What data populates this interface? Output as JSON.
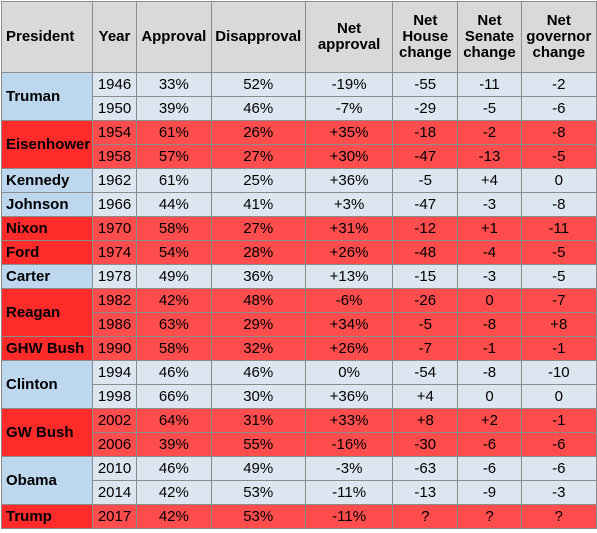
{
  "headers": {
    "president": "President",
    "year": "Year",
    "approval": "Approval",
    "disapproval": "Disapproval",
    "net_approval": [
      "Net",
      "approval"
    ],
    "net_house": [
      "Net",
      "House",
      "change"
    ],
    "net_senate": [
      "Net",
      "Senate",
      "change"
    ],
    "net_governor": [
      "Net",
      "governor",
      "change"
    ]
  },
  "colors": {
    "democrat_row": "#dce6f1",
    "democrat_name": "#bdd7ee",
    "republican_row": "#ff4d4d",
    "republican_name": "#ff2b2b",
    "header": "#d9d9d9"
  },
  "groups": [
    {
      "president": "Truman",
      "party": "D",
      "rows": [
        {
          "year": "1946",
          "approval": "33%",
          "disapproval": "52%",
          "net": "-19%",
          "house": "-55",
          "senate": "-11",
          "governor": "-2"
        },
        {
          "year": "1950",
          "approval": "39%",
          "disapproval": "46%",
          "net": "-7%",
          "house": "-29",
          "senate": "-5",
          "governor": "-6"
        }
      ]
    },
    {
      "president": "Eisenhower",
      "party": "R",
      "rows": [
        {
          "year": "1954",
          "approval": "61%",
          "disapproval": "26%",
          "net": "+35%",
          "house": "-18",
          "senate": "-2",
          "governor": "-8"
        },
        {
          "year": "1958",
          "approval": "57%",
          "disapproval": "27%",
          "net": "+30%",
          "house": "-47",
          "senate": "-13",
          "governor": "-5"
        }
      ]
    },
    {
      "president": "Kennedy",
      "party": "D",
      "rows": [
        {
          "year": "1962",
          "approval": "61%",
          "disapproval": "25%",
          "net": "+36%",
          "house": "-5",
          "senate": "+4",
          "governor": "0"
        }
      ]
    },
    {
      "president": "Johnson",
      "party": "D",
      "rows": [
        {
          "year": "1966",
          "approval": "44%",
          "disapproval": "41%",
          "net": "+3%",
          "house": "-47",
          "senate": "-3",
          "governor": "-8"
        }
      ]
    },
    {
      "president": "Nixon",
      "party": "R",
      "rows": [
        {
          "year": "1970",
          "approval": "58%",
          "disapproval": "27%",
          "net": "+31%",
          "house": "-12",
          "senate": "+1",
          "governor": "-11"
        }
      ]
    },
    {
      "president": "Ford",
      "party": "R",
      "rows": [
        {
          "year": "1974",
          "approval": "54%",
          "disapproval": "28%",
          "net": "+26%",
          "house": "-48",
          "senate": "-4",
          "governor": "-5"
        }
      ]
    },
    {
      "president": "Carter",
      "party": "D",
      "rows": [
        {
          "year": "1978",
          "approval": "49%",
          "disapproval": "36%",
          "net": "+13%",
          "house": "-15",
          "senate": "-3",
          "governor": "-5"
        }
      ]
    },
    {
      "president": "Reagan",
      "party": "R",
      "rows": [
        {
          "year": "1982",
          "approval": "42%",
          "disapproval": "48%",
          "net": "-6%",
          "house": "-26",
          "senate": "0",
          "governor": "-7"
        },
        {
          "year": "1986",
          "approval": "63%",
          "disapproval": "29%",
          "net": "+34%",
          "house": "-5",
          "senate": "-8",
          "governor": "+8"
        }
      ]
    },
    {
      "president": "GHW Bush",
      "party": "R",
      "rows": [
        {
          "year": "1990",
          "approval": "58%",
          "disapproval": "32%",
          "net": "+26%",
          "house": "-7",
          "senate": "-1",
          "governor": "-1"
        }
      ]
    },
    {
      "president": "Clinton",
      "party": "D",
      "rows": [
        {
          "year": "1994",
          "approval": "46%",
          "disapproval": "46%",
          "net": "0%",
          "house": "-54",
          "senate": "-8",
          "governor": "-10"
        },
        {
          "year": "1998",
          "approval": "66%",
          "disapproval": "30%",
          "net": "+36%",
          "house": "+4",
          "senate": "0",
          "governor": "0"
        }
      ]
    },
    {
      "president": "GW Bush",
      "party": "R",
      "rows": [
        {
          "year": "2002",
          "approval": "64%",
          "disapproval": "31%",
          "net": "+33%",
          "house": "+8",
          "senate": "+2",
          "governor": "-1"
        },
        {
          "year": "2006",
          "approval": "39%",
          "disapproval": "55%",
          "net": "-16%",
          "house": "-30",
          "senate": "-6",
          "governor": "-6"
        }
      ]
    },
    {
      "president": "Obama",
      "party": "D",
      "rows": [
        {
          "year": "2010",
          "approval": "46%",
          "disapproval": "49%",
          "net": "-3%",
          "house": "-63",
          "senate": "-6",
          "governor": "-6"
        },
        {
          "year": "2014",
          "approval": "42%",
          "disapproval": "53%",
          "net": "-11%",
          "house": "-13",
          "senate": "-9",
          "governor": "-3"
        }
      ]
    },
    {
      "president": "Trump",
      "party": "R",
      "rows": [
        {
          "year": "2017",
          "approval": "42%",
          "disapproval": "53%",
          "net": "-11%",
          "house": "?",
          "senate": "?",
          "governor": "?"
        }
      ]
    }
  ]
}
